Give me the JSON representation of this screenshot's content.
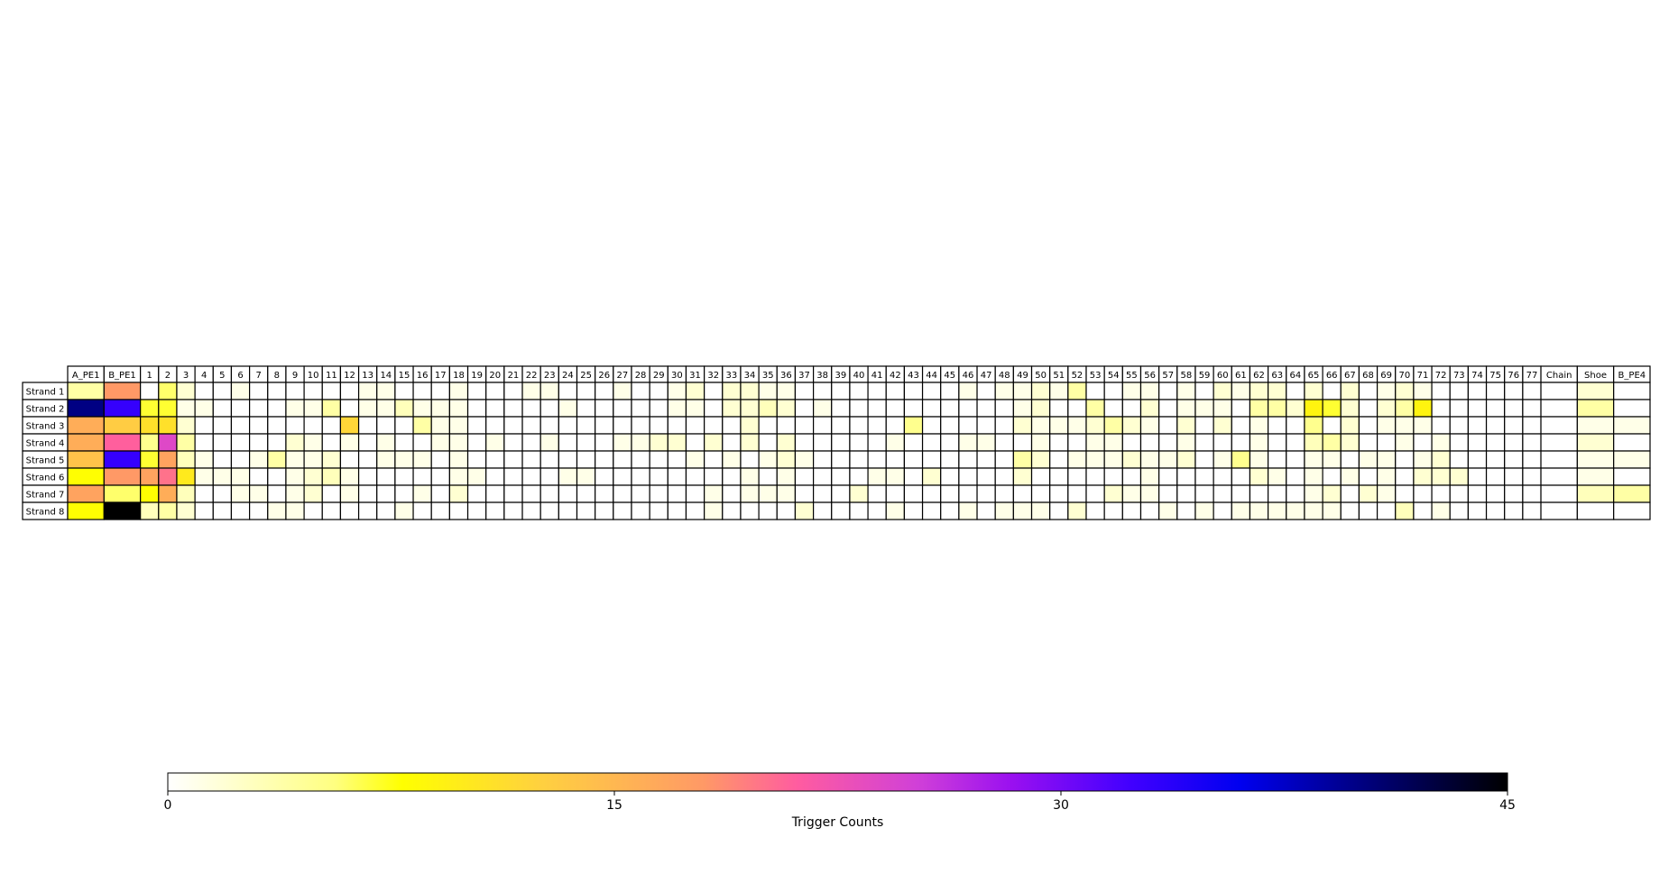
{
  "chart_data": {
    "type": "heatmap",
    "columns": [
      "A_PE1",
      "B_PE1",
      "1",
      "2",
      "3",
      "4",
      "5",
      "6",
      "7",
      "8",
      "9",
      "10",
      "11",
      "12",
      "13",
      "14",
      "15",
      "16",
      "17",
      "18",
      "19",
      "20",
      "21",
      "22",
      "23",
      "24",
      "25",
      "26",
      "27",
      "28",
      "29",
      "30",
      "31",
      "32",
      "33",
      "34",
      "35",
      "36",
      "37",
      "38",
      "39",
      "40",
      "41",
      "42",
      "43",
      "44",
      "45",
      "46",
      "47",
      "48",
      "49",
      "50",
      "51",
      "52",
      "53",
      "54",
      "55",
      "56",
      "57",
      "58",
      "59",
      "60",
      "61",
      "62",
      "63",
      "64",
      "65",
      "66",
      "67",
      "68",
      "69",
      "70",
      "71",
      "72",
      "73",
      "74",
      "75",
      "76",
      "77",
      "Chain",
      "Shoe",
      "B_PE4"
    ],
    "rows": [
      "Strand 1",
      "Strand 2",
      "Strand 3",
      "Strand 4",
      "Strand 5",
      "Strand 6",
      "Strand 7",
      "Strand 8"
    ],
    "values": [
      [
        4,
        18,
        0,
        6,
        2,
        0,
        0,
        1,
        0,
        0,
        0,
        0,
        0,
        0,
        1,
        1,
        0,
        0,
        0,
        1,
        0,
        0,
        0,
        1,
        1,
        0,
        0,
        0,
        1,
        0,
        0,
        1,
        2,
        0,
        2,
        2,
        1,
        1,
        0,
        0,
        0,
        0,
        0,
        0,
        0,
        0,
        0,
        1,
        0,
        1,
        1,
        2,
        1,
        4,
        0,
        0,
        1,
        1,
        0,
        1,
        0,
        2,
        1,
        2,
        2,
        0,
        2,
        0,
        2,
        0,
        1,
        2,
        1,
        0,
        0,
        0,
        0,
        0,
        0,
        0,
        2,
        0
      ],
      [
        40,
        33,
        7,
        7,
        1,
        1,
        0,
        0,
        0,
        0,
        1,
        1,
        4,
        0,
        1,
        1,
        3,
        1,
        1,
        1,
        0,
        0,
        0,
        0,
        0,
        1,
        0,
        0,
        0,
        0,
        0,
        1,
        1,
        0,
        2,
        2,
        3,
        2,
        0,
        1,
        0,
        0,
        0,
        0,
        0,
        0,
        0,
        0,
        0,
        0,
        1,
        2,
        0,
        0,
        4,
        0,
        0,
        2,
        0,
        1,
        1,
        1,
        0,
        4,
        4,
        2,
        9,
        7,
        2,
        0,
        2,
        4,
        9,
        0,
        0,
        0,
        0,
        0,
        0,
        0,
        4,
        0
      ],
      [
        16,
        13,
        11,
        11,
        2,
        0,
        0,
        0,
        0,
        0,
        0,
        0,
        0,
        12,
        0,
        0,
        0,
        4,
        1,
        1,
        0,
        0,
        0,
        0,
        0,
        0,
        0,
        0,
        0,
        0,
        0,
        0,
        0,
        0,
        0,
        2,
        0,
        0,
        0,
        0,
        0,
        0,
        0,
        0,
        5,
        0,
        0,
        0,
        0,
        0,
        2,
        1,
        1,
        1,
        2,
        4,
        2,
        1,
        0,
        2,
        0,
        2,
        0,
        1,
        0,
        0,
        5,
        0,
        2,
        0,
        1,
        1,
        1,
        0,
        0,
        0,
        0,
        0,
        0,
        0,
        1,
        1
      ],
      [
        16,
        21,
        5,
        24,
        4,
        0,
        0,
        0,
        0,
        0,
        2,
        1,
        0,
        1,
        0,
        1,
        0,
        0,
        1,
        1,
        0,
        1,
        0,
        0,
        1,
        0,
        0,
        0,
        1,
        1,
        2,
        2,
        0,
        2,
        0,
        2,
        0,
        2,
        0,
        0,
        0,
        0,
        0,
        1,
        0,
        0,
        0,
        1,
        1,
        0,
        0,
        1,
        0,
        0,
        1,
        1,
        0,
        0,
        0,
        1,
        0,
        0,
        0,
        1,
        0,
        0,
        3,
        4,
        2,
        0,
        0,
        1,
        0,
        1,
        0,
        0,
        0,
        0,
        0,
        0,
        2,
        0
      ],
      [
        14,
        33,
        7,
        17,
        3,
        1,
        0,
        0,
        1,
        4,
        1,
        1,
        2,
        0,
        0,
        1,
        1,
        1,
        0,
        1,
        0,
        0,
        0,
        0,
        0,
        0,
        0,
        0,
        0,
        0,
        0,
        0,
        1,
        0,
        1,
        0,
        1,
        2,
        1,
        0,
        0,
        0,
        0,
        0,
        0,
        0,
        0,
        0,
        0,
        0,
        4,
        2,
        0,
        1,
        1,
        1,
        2,
        1,
        1,
        2,
        0,
        1,
        5,
        1,
        0,
        0,
        1,
        1,
        0,
        1,
        1,
        0,
        1,
        2,
        0,
        0,
        0,
        0,
        0,
        0,
        1,
        1
      ],
      [
        8,
        18,
        17,
        20,
        10,
        1,
        1,
        1,
        0,
        0,
        1,
        2,
        3,
        1,
        0,
        0,
        0,
        0,
        0,
        1,
        1,
        0,
        0,
        0,
        0,
        1,
        1,
        0,
        0,
        0,
        0,
        0,
        0,
        0,
        0,
        1,
        0,
        1,
        0,
        0,
        0,
        0,
        1,
        1,
        0,
        2,
        0,
        0,
        0,
        0,
        2,
        0,
        0,
        0,
        0,
        0,
        0,
        1,
        0,
        0,
        0,
        0,
        0,
        2,
        1,
        0,
        1,
        0,
        1,
        0,
        1,
        0,
        2,
        2,
        2,
        0,
        0,
        0,
        0,
        0,
        1,
        0
      ],
      [
        17,
        6,
        8,
        16,
        3,
        0,
        0,
        1,
        1,
        0,
        1,
        2,
        0,
        1,
        0,
        0,
        0,
        1,
        0,
        2,
        0,
        0,
        0,
        0,
        0,
        0,
        0,
        0,
        0,
        0,
        0,
        0,
        0,
        1,
        0,
        1,
        1,
        1,
        0,
        0,
        0,
        2,
        0,
        0,
        0,
        0,
        0,
        0,
        0,
        0,
        0,
        0,
        0,
        0,
        0,
        2,
        1,
        1,
        0,
        0,
        0,
        0,
        0,
        0,
        0,
        0,
        1,
        2,
        0,
        2,
        1,
        0,
        0,
        0,
        0,
        0,
        0,
        0,
        0,
        0,
        3,
        4
      ],
      [
        8,
        45,
        3,
        4,
        2,
        0,
        0,
        0,
        0,
        1,
        1,
        0,
        0,
        0,
        0,
        0,
        1,
        0,
        0,
        0,
        0,
        0,
        0,
        0,
        0,
        0,
        0,
        0,
        0,
        0,
        0,
        0,
        0,
        1,
        0,
        0,
        0,
        0,
        2,
        0,
        0,
        0,
        0,
        1,
        0,
        0,
        0,
        1,
        0,
        1,
        1,
        1,
        0,
        2,
        0,
        0,
        0,
        0,
        1,
        0,
        1,
        0,
        1,
        1,
        1,
        1,
        1,
        1,
        0,
        0,
        0,
        3,
        0,
        1,
        0,
        0,
        0,
        0,
        0,
        0,
        0,
        0
      ]
    ],
    "colorbar": {
      "label": "Trigger Counts",
      "ticks": [
        "0",
        "15",
        "30",
        "45"
      ],
      "vmin": 0,
      "vmax": 45,
      "colormap": "gnuplot2_r"
    },
    "title": "",
    "xlabel": "",
    "ylabel": ""
  }
}
